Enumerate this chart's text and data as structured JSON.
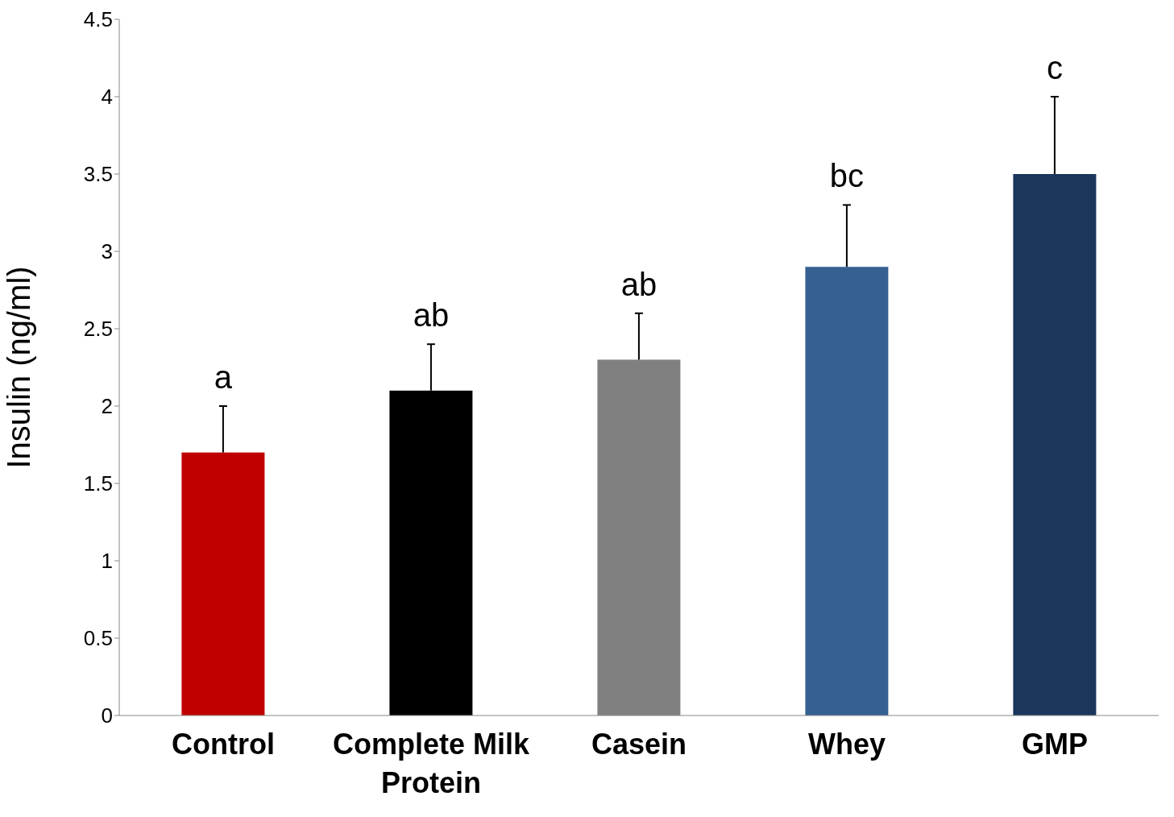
{
  "chart_data": {
    "type": "bar",
    "ylabel": "Insulin (ng/ml)",
    "categories": [
      "Control",
      "Complete Milk Protein",
      "Casein",
      "Whey",
      "GMP"
    ],
    "values": [
      1.7,
      2.1,
      2.3,
      2.9,
      3.5
    ],
    "colors": [
      "#c00000",
      "#000000",
      "#808080",
      "#376092",
      "#1b365d"
    ],
    "errors": [
      [
        1.7,
        2.0
      ],
      [
        2.1,
        2.4
      ],
      [
        2.3,
        2.6
      ],
      [
        2.9,
        3.3
      ],
      [
        3.5,
        4.0
      ]
    ],
    "ylim": [
      0,
      4.5
    ],
    "yticks": [
      0,
      0.5,
      1,
      1.5,
      2,
      2.5,
      3,
      3.5,
      4,
      4.5
    ],
    "grid": false,
    "legend": false,
    "annotations": [
      {
        "text": "a",
        "x": "Control",
        "y": 2.0
      },
      {
        "text": "ab",
        "x": "Complete Milk Protein",
        "y": 2.4
      },
      {
        "text": "ab",
        "x": "Casein",
        "y": 2.6
      },
      {
        "text": "bc",
        "x": "Whey",
        "y": 3.3
      },
      {
        "text": "c",
        "x": "GMP",
        "y": 4.0
      }
    ]
  }
}
